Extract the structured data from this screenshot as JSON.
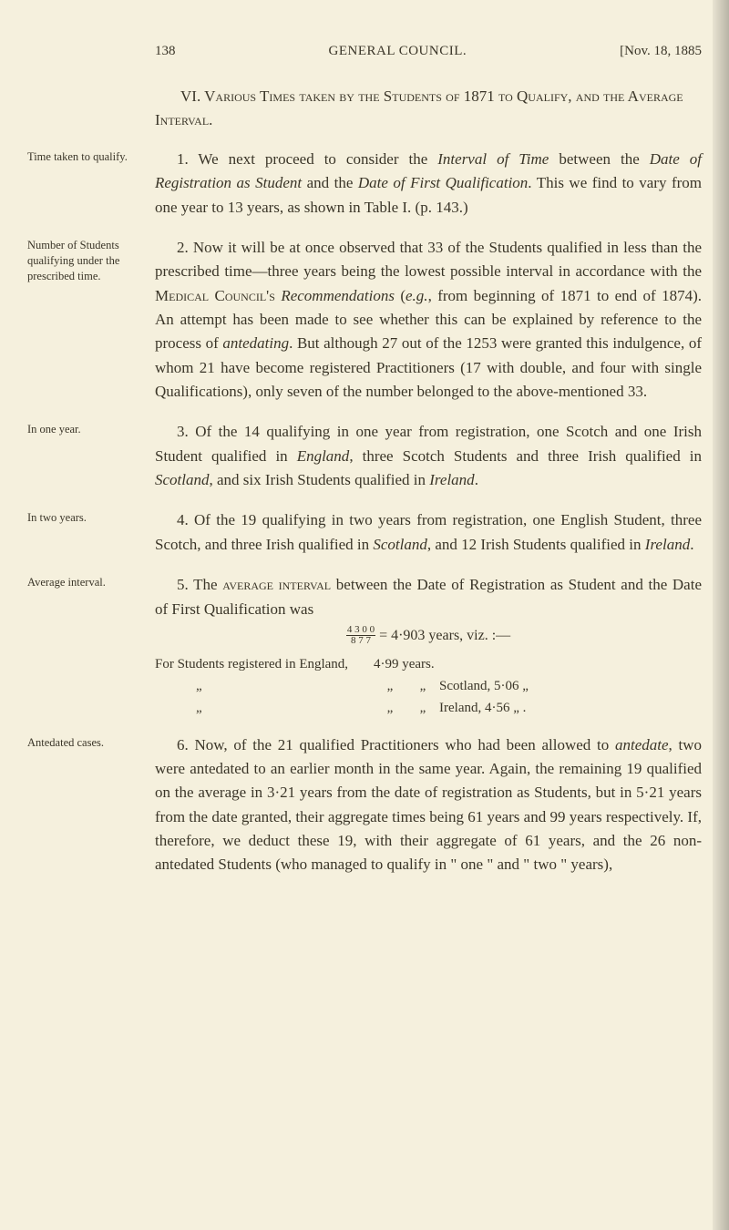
{
  "header": {
    "pageNumber": "138",
    "title": "GENERAL COUNCIL.",
    "date": "[Nov. 18, 1885"
  },
  "sectionTitle": {
    "roman": "VI.",
    "text": " Various Times taken by the Students of 1871 to Qualify, and the Average Interval."
  },
  "paras": [
    {
      "margin": "Time taken to qualify.",
      "body": "1. We next proceed to consider the <span class='ital'>Interval of Time</span> between the <span class='ital'>Date of Registration as Student</span> and the <span class='ital'>Date of First Qualification</span>. This we find to vary from one year to 13 years, as shown in Table I. (p. 143.)"
    },
    {
      "margin": "Number of Students qualifying under the prescribed time.",
      "body": "2. Now it will be at once observed that 33 of the Students qualified in less than the prescribed time—three years being the lowest possible interval in accordance with the <span class='sc'>Medical Council's</span> <span class='ital'>Recommendations</span> (<span class='ital'>e.g.</span>, from beginning of 1871 to end of 1874). An attempt has been made to see whether this can be explained by reference to the process of <span class='ital'>antedating</span>. But although 27 out of the 1253 were granted this indulgence, of whom 21 have become registered Practitioners (17 with double, and four with single Qualifications), only seven of the number belonged to the above-mentioned 33."
    },
    {
      "margin": "In one year.",
      "body": "3. Of the 14 qualifying in one year from registration, one Scotch and one Irish Student qualified in <span class='ital'>England</span>, three Scotch Students and three Irish qualified in <span class='ital'>Scotland</span>, and six Irish Students qualified in <span class='ital'>Ireland</span>."
    },
    {
      "margin": "In two years.",
      "body": "4. Of the 19 qualifying in two years from registration, one English Student, three Scotch, and three Irish qualified in <span class='ital'>Scotland</span>, and 12 Irish Students qualified in <span class='ital'>Ireland</span>."
    },
    {
      "margin": "Average interval.",
      "body": "5. The <span class='sc'>average interval</span> between the Date of Registration as Student and the Date of First Qualification was"
    }
  ],
  "formula": {
    "frac_num": "4 3 0 0",
    "frac_den": "8 7 7",
    "result": " = 4·903 years, viz. :—"
  },
  "studentsTable": {
    "rows": [
      {
        "c1": "For Students registered in England,",
        "c4": "4·99 years."
      },
      {
        "c1": "",
        "c2": "„",
        "c3": "„",
        "c4_pre": "        Scotland, ",
        "c4": "5·06   „"
      },
      {
        "c1": "",
        "c2": "„",
        "c3": "„",
        "c4_pre": "          Ireland, ",
        "c4": "4·56   „   ."
      }
    ]
  },
  "lastPara": {
    "margin": "Antedated cases.",
    "body": "6. Now, of the 21 qualified Practitioners who had been allowed to <span class='ital'>antedate</span>, two were antedated to an earlier month in the same year. Again, the remaining 19 qualified on the average in 3·21 years from the date of registration as Students, but in 5·21 years from the date granted, their aggregate times being 61 years and 99 years respectively. If, therefore, we deduct these 19, with their aggregate of 61 years, and the 26 non-antedated Students (who managed to qualify in \" one \" and \" two \" years),"
  }
}
